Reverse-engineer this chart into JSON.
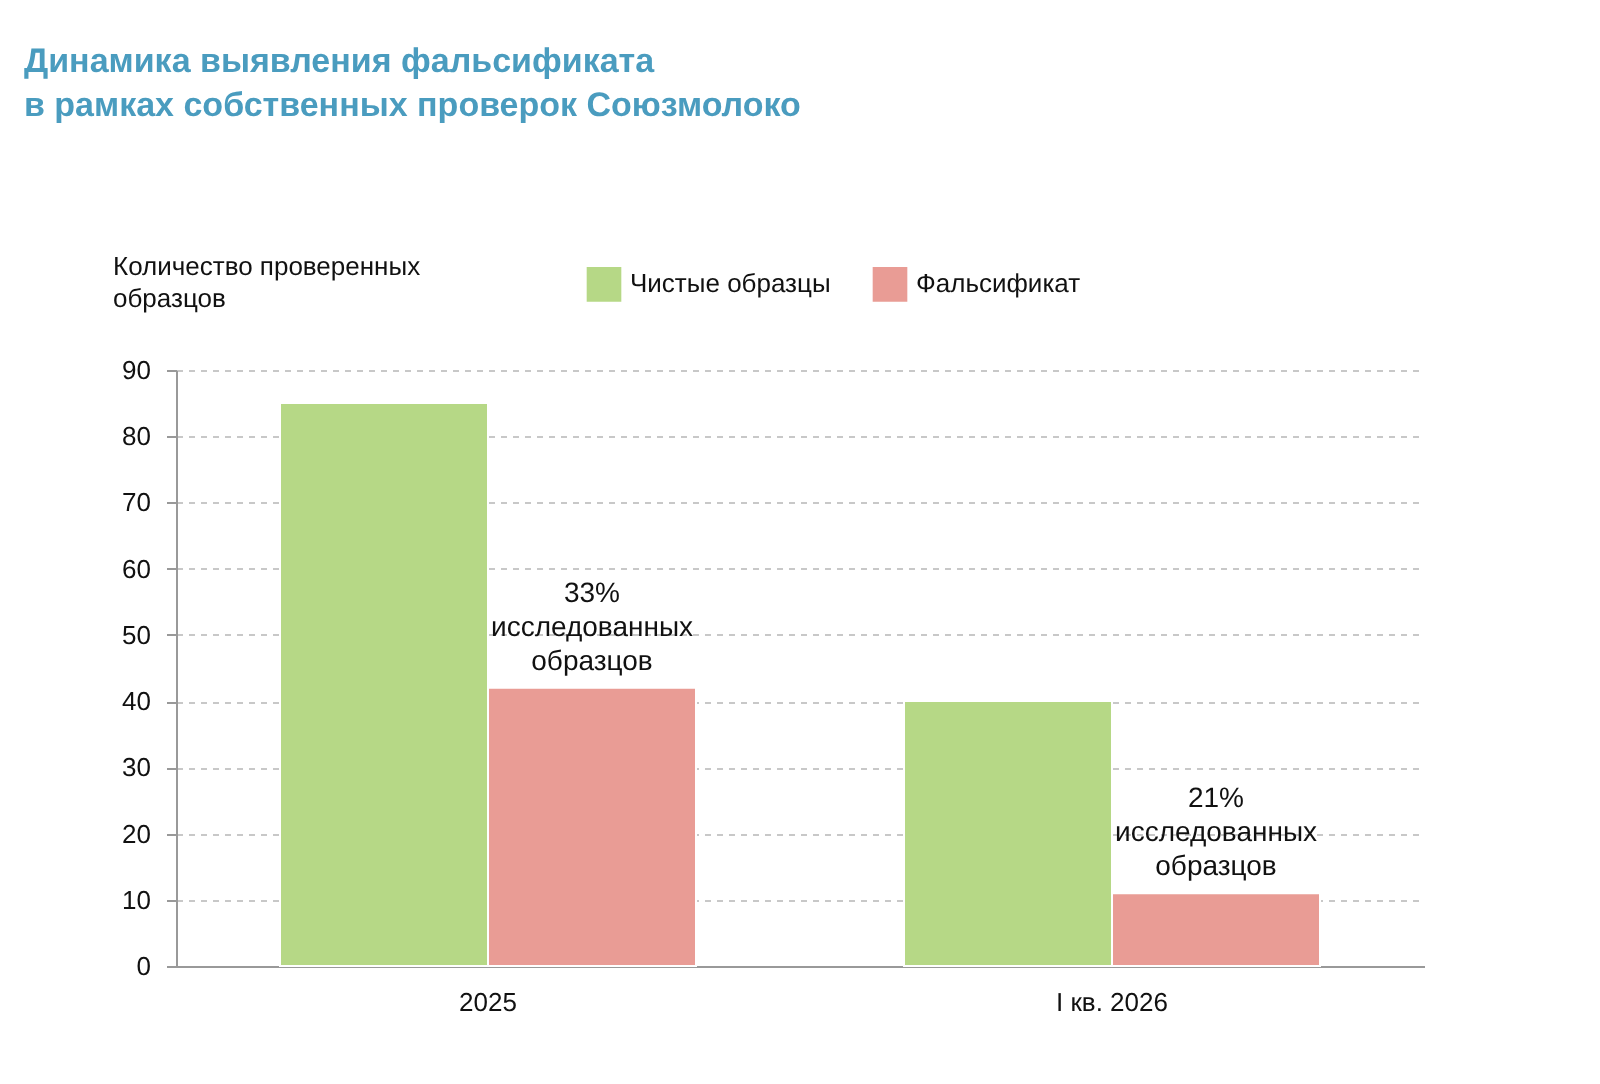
{
  "chart_data": {
    "type": "bar",
    "title": "Динамика выявления фальсификата\nв рамках собственных проверок Союзмолоко",
    "ylabel": "Количество проверенных\nобразцов",
    "categories": [
      "2025",
      "I кв. 2026"
    ],
    "series": [
      {
        "name": "Чистые образцы",
        "color": "#b6d886",
        "values": [
          85,
          40
        ]
      },
      {
        "name": "Фальсификат",
        "color": "#e99c95",
        "values": [
          42,
          11
        ]
      }
    ],
    "ylim": [
      0,
      90
    ],
    "yticks": [
      0,
      10,
      20,
      30,
      40,
      50,
      60,
      70,
      80,
      90
    ],
    "grid": "y",
    "legend": "top",
    "annotations": [
      {
        "text": "33%\nисследованных\nобразцов",
        "x": "2025",
        "y": 42
      },
      {
        "text": "21%\nисследованных\nобразцов",
        "x": "I кв. 2026",
        "y": 11
      }
    ]
  }
}
